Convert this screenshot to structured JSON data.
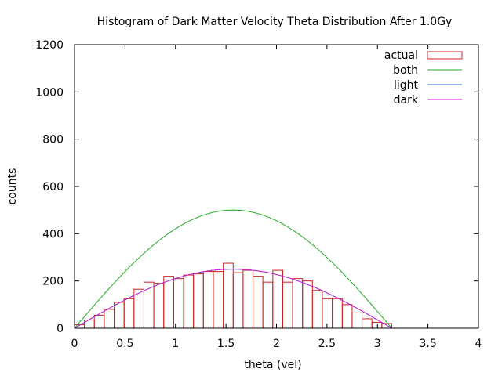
{
  "chart_data": {
    "type": "bar",
    "title": "Histogram of Dark Matter Velocity Theta Distribution After 1.0Gy",
    "xlabel": "theta (vel)",
    "ylabel": "counts",
    "xlim": [
      0,
      4
    ],
    "ylim": [
      0,
      1200
    ],
    "xticks": [
      "0",
      "0.5",
      "1",
      "1.5",
      "2",
      "2.5",
      "3",
      "3.5",
      "4"
    ],
    "yticks": [
      "0",
      "200",
      "400",
      "600",
      "800",
      "1000",
      "1200"
    ],
    "grid": false,
    "legend_position": "top-right",
    "legend": [
      {
        "label": "actual",
        "kind": "box",
        "color": "#cc2222"
      },
      {
        "label": "both",
        "kind": "line",
        "color": "#22aa22"
      },
      {
        "label": "light",
        "kind": "line",
        "color": "#3366cc"
      },
      {
        "label": "dark",
        "kind": "line",
        "color": "#cc22cc"
      }
    ],
    "histogram": {
      "name": "actual",
      "bin_width": 0.0982,
      "color": "#cc2222",
      "x": [
        0.049,
        0.147,
        0.245,
        0.344,
        0.442,
        0.54,
        0.638,
        0.736,
        0.834,
        0.933,
        1.031,
        1.129,
        1.227,
        1.325,
        1.424,
        1.522,
        1.62,
        1.718,
        1.816,
        1.914,
        2.013,
        2.111,
        2.209,
        2.307,
        2.405,
        2.503,
        2.602,
        2.7,
        2.798,
        2.896,
        2.994,
        3.093
      ],
      "counts": [
        15,
        35,
        55,
        80,
        110,
        125,
        165,
        195,
        190,
        220,
        210,
        225,
        230,
        240,
        240,
        275,
        235,
        245,
        220,
        195,
        245,
        195,
        210,
        200,
        160,
        125,
        125,
        100,
        65,
        40,
        25,
        20
      ]
    },
    "curves": [
      {
        "name": "both",
        "color": "#22aa22",
        "x_range": [
          0,
          3.1416
        ],
        "amplitude": 500
      },
      {
        "name": "light",
        "color": "#3366cc",
        "x_range": [
          0,
          3.1416
        ],
        "amplitude": 250
      },
      {
        "name": "dark",
        "color": "#cc22cc",
        "x_range": [
          0,
          3.1416
        ],
        "amplitude": 250
      }
    ]
  }
}
